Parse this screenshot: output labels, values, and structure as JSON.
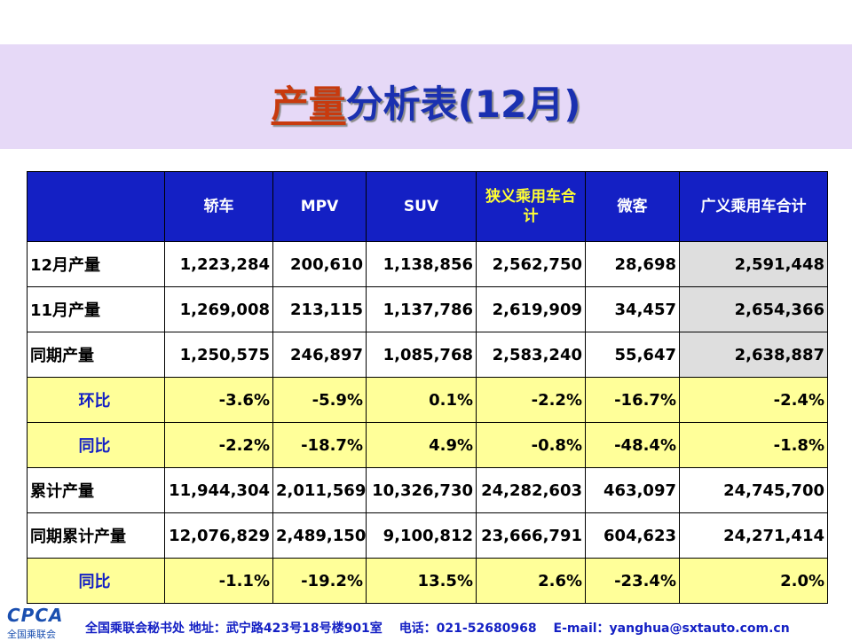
{
  "title": {
    "highlight": "产量",
    "rest": "分析表(12月)"
  },
  "columns": [
    "",
    "轿车",
    "MPV",
    "SUV",
    "狭义乘用车合计",
    "微客",
    "广义乘用车合计"
  ],
  "rows": [
    {
      "label": "12月产量",
      "type": "num",
      "values": [
        "1,223,284",
        "200,610",
        "1,138,856",
        "2,562,750",
        "28,698",
        "2,591,448"
      ]
    },
    {
      "label": "11月产量",
      "type": "num",
      "values": [
        "1,269,008",
        "213,115",
        "1,137,786",
        "2,619,909",
        "34,457",
        "2,654,366"
      ]
    },
    {
      "label": "同期产量",
      "type": "num",
      "values": [
        "1,250,575",
        "246,897",
        "1,085,768",
        "2,583,240",
        "55,647",
        "2,638,887"
      ]
    },
    {
      "label": "环比",
      "type": "pct",
      "values": [
        "-3.6%",
        "-5.9%",
        "0.1%",
        "-2.2%",
        "-16.7%",
        "-2.4%"
      ]
    },
    {
      "label": "同比",
      "type": "pct",
      "values": [
        "-2.2%",
        "-18.7%",
        "4.9%",
        "-0.8%",
        "-48.4%",
        "-1.8%"
      ]
    },
    {
      "label": "累计产量",
      "type": "num",
      "values": [
        "11,944,304",
        "2,011,569",
        "10,326,730",
        "24,282,603",
        "463,097",
        "24,745,700"
      ]
    },
    {
      "label": "同期累计产量",
      "type": "num",
      "values": [
        "12,076,829",
        "2,489,150",
        "9,100,812",
        "23,666,791",
        "604,623",
        "24,271,414"
      ]
    },
    {
      "label": "同比",
      "type": "pct",
      "values": [
        "-1.1%",
        "-19.2%",
        "13.5%",
        "2.6%",
        "-23.4%",
        "2.0%"
      ]
    }
  ],
  "footer": {
    "logo_brand": "CPCA",
    "logo_sub": "全国乘联会",
    "org_address": "全国乘联会秘书处 地址：武宁路423号18号楼901室",
    "phone": "电话：021-52680968",
    "email": "E-mail：yanghua@sxtauto.com.cn"
  },
  "colors": {
    "header_bg": "#1420c4",
    "banner_bg": "#e6d9f7",
    "pct_row_bg": "#ffff99",
    "positive": "#ee1010",
    "negative": "#1f8a1f",
    "grey_col": "#dedede"
  }
}
